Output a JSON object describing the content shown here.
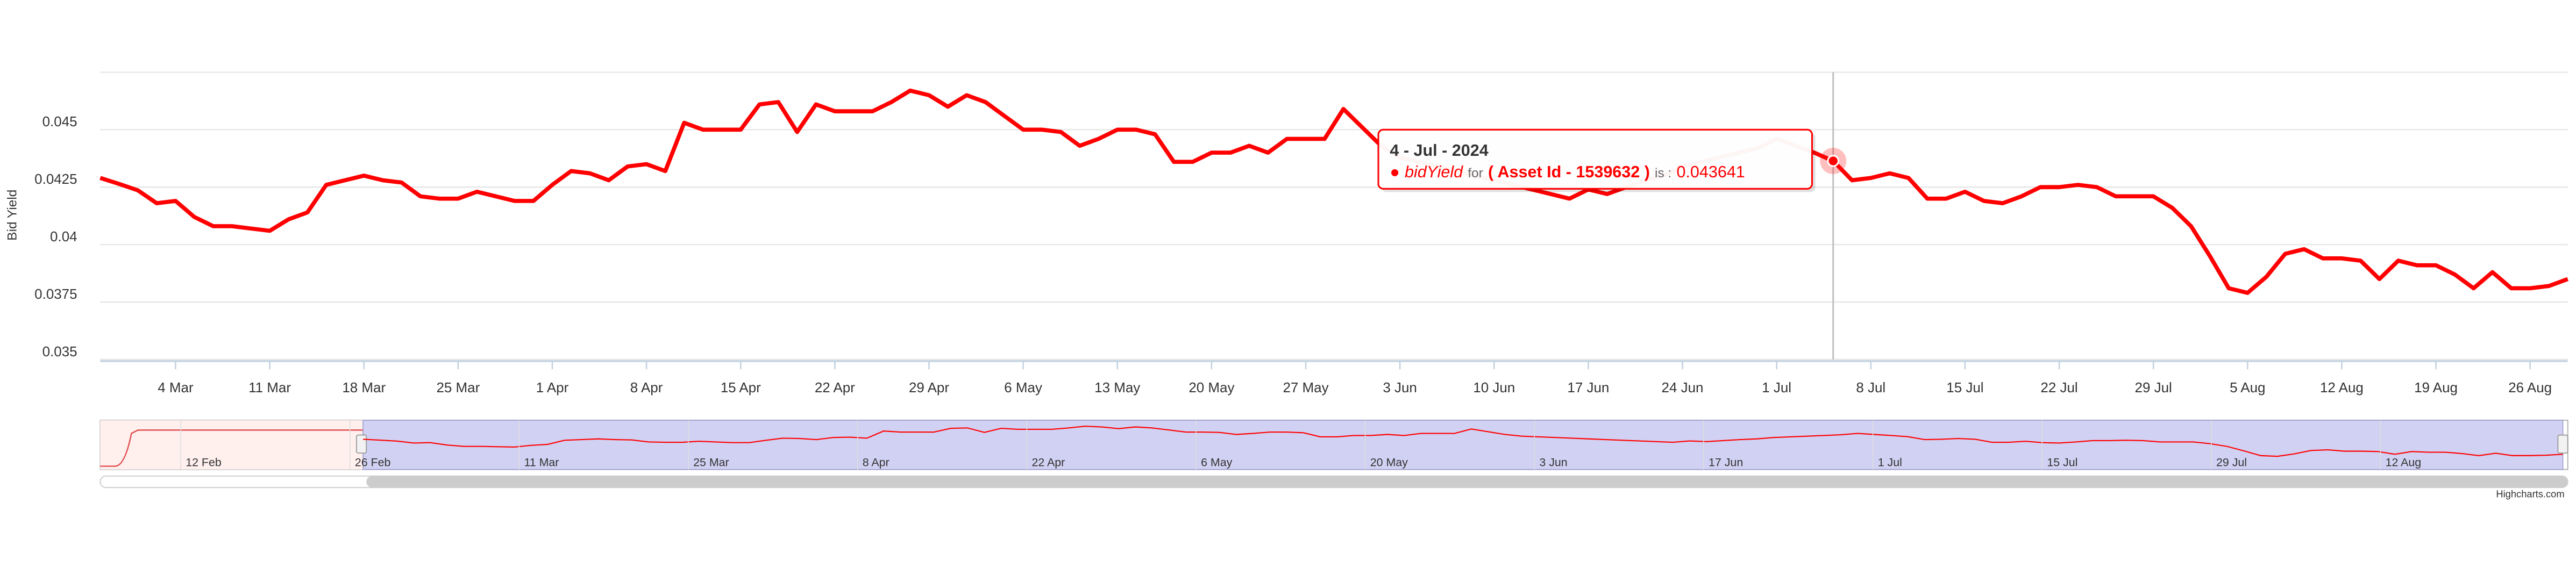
{
  "chart_data": {
    "type": "line",
    "y_axis_label": "Bid Yield",
    "categories": [
      null,
      null,
      null,
      null,
      "4 Mar",
      null,
      null,
      null,
      null,
      "11 Mar",
      null,
      null,
      null,
      null,
      "18 Mar",
      null,
      null,
      null,
      null,
      "25 Mar",
      null,
      null,
      null,
      null,
      "1 Apr",
      null,
      null,
      null,
      null,
      "8 Apr",
      null,
      null,
      null,
      null,
      "15 Apr",
      null,
      null,
      null,
      null,
      "22 Apr",
      null,
      null,
      null,
      null,
      "29 Apr",
      null,
      null,
      null,
      null,
      "6 May",
      null,
      null,
      null,
      null,
      "13 May",
      null,
      null,
      null,
      null,
      "20 May",
      null,
      null,
      null,
      null,
      "27 May",
      null,
      null,
      null,
      null,
      "3 Jun",
      null,
      null,
      null,
      null,
      "10 Jun",
      null,
      null,
      null,
      null,
      "17 Jun",
      null,
      null,
      null,
      null,
      "24 Jun",
      null,
      null,
      null,
      null,
      "1 Jul",
      null,
      null,
      null,
      null,
      "8 Jul",
      null,
      null,
      null,
      null,
      "15 Jul",
      null,
      null,
      null,
      null,
      "22 Jul",
      null,
      null,
      null,
      null,
      "29 Jul",
      null,
      null,
      null,
      null,
      "5 Aug",
      null,
      null,
      null,
      null,
      "12 Aug",
      null,
      null,
      null,
      null,
      "19 Aug",
      null,
      null,
      null,
      null,
      "26 Aug",
      null,
      null
    ],
    "series": [
      {
        "name": "bidYield",
        "color": "#ff0000",
        "values": [
          0.0429,
          0.04264,
          0.04236,
          0.0418,
          0.0419,
          0.0412,
          0.0408,
          0.0408,
          0.0407,
          0.0406,
          0.0411,
          0.0414,
          0.0426,
          0.0428,
          0.043,
          0.0428,
          0.0427,
          0.0421,
          0.042,
          0.042,
          0.0423,
          0.0421,
          0.0419,
          0.0419,
          0.0426,
          0.0432,
          0.0431,
          0.0428,
          0.0434,
          0.0435,
          0.0432,
          0.0453,
          0.045,
          0.045,
          0.045,
          0.0461,
          0.0462,
          0.0449,
          0.0461,
          0.0458,
          0.0458,
          0.0458,
          0.0462,
          0.0467,
          0.0465,
          0.046,
          0.0465,
          0.0462,
          0.0456,
          0.045,
          0.045,
          0.0449,
          0.0443,
          0.0446,
          0.045,
          0.045,
          0.0448,
          0.0436,
          0.0436,
          0.044,
          0.044,
          0.0443,
          0.044,
          0.0446,
          0.0446,
          0.0446,
          0.0459,
          0.0451,
          0.0443,
          0.0438,
          0.0436,
          0.0434,
          0.0432,
          0.043,
          0.0428,
          0.0426,
          0.0424,
          0.0422,
          0.042,
          0.0424,
          0.0422,
          0.0425,
          0.0428,
          0.043,
          0.0434,
          0.0436,
          0.0438,
          0.044,
          0.0442,
          0.0446,
          0.0443,
          0.044,
          0.043641,
          0.0428,
          0.0429,
          0.0431,
          0.0429,
          0.042,
          0.042,
          0.0423,
          0.0419,
          0.0418,
          0.0421,
          0.0425,
          0.0425,
          0.0426,
          0.0425,
          0.0421,
          0.0421,
          0.0421,
          0.0416,
          0.0408,
          0.0395,
          0.0381,
          0.0379,
          0.0386,
          0.0396,
          0.0398,
          0.0394,
          0.0394,
          0.0393,
          0.0385,
          0.0393,
          0.0391,
          0.0391,
          0.0387,
          0.0381,
          0.0388,
          0.0381,
          0.0381,
          0.0382,
          0.0385
        ]
      }
    ],
    "ylim": [
      0.035,
      0.0475
    ],
    "yticks": [
      0.035,
      0.0375,
      0.04,
      0.0425,
      0.045
    ],
    "grid": true,
    "tooltip": {
      "date": "4 - Jul - 2024",
      "for_text": "for",
      "asset": "( Asset Id - 1539632 )",
      "is_text": "is :"
    },
    "navigator_labels": [
      "12 Feb",
      "26 Feb",
      "11 Mar",
      "25 Mar",
      "8 Apr",
      "22 Apr",
      "6 May",
      "20 May",
      "3 Jun",
      "17 Jun",
      "1 Jul",
      "15 Jul",
      "29 Jul",
      "12 Aug"
    ],
    "credits": "Highcharts.com"
  }
}
